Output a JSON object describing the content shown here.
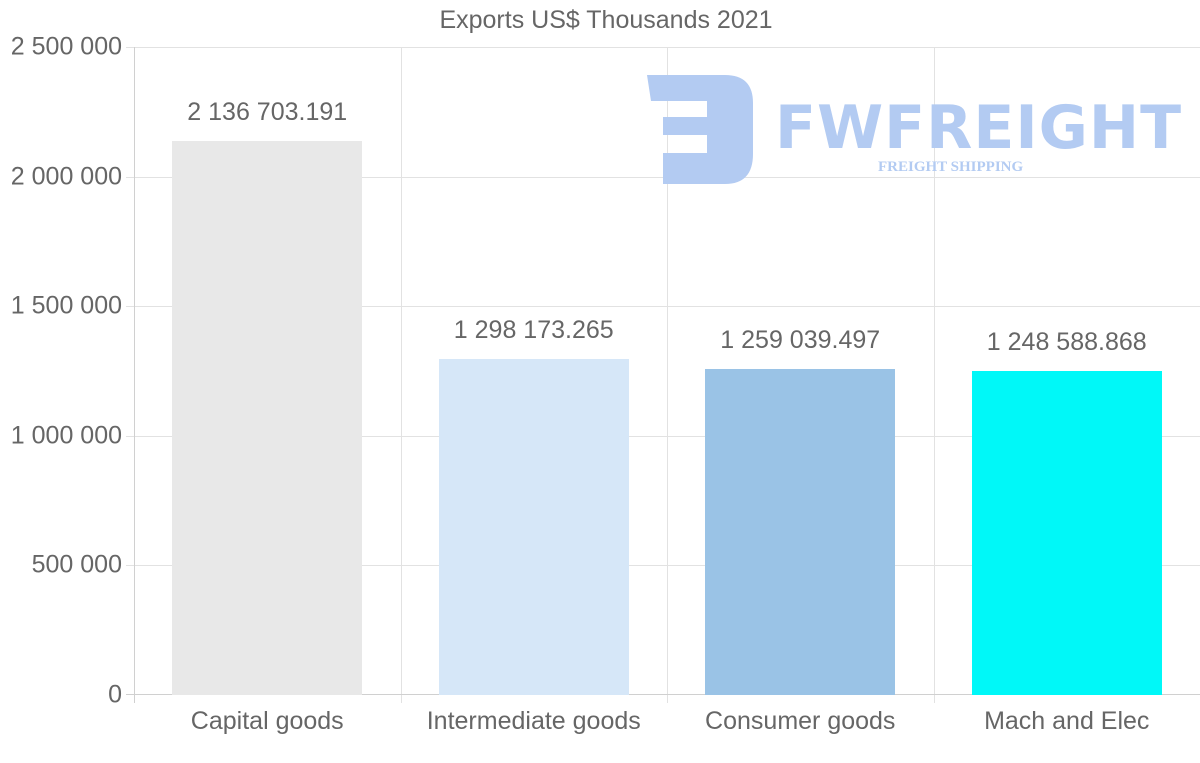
{
  "chart_data": {
    "type": "bar",
    "title": "Exports US$ Thousands 2021",
    "xlabel": "",
    "ylabel": "",
    "categories": [
      "Capital goods",
      "Intermediate goods",
      "Consumer goods",
      "Mach and Elec"
    ],
    "values": [
      2136703.191,
      1298173.265,
      1259039.497,
      1248588.868
    ],
    "value_labels": [
      "2 136 703.191",
      "1 298 173.265",
      "1 259 039.497",
      "1 248 588.868"
    ],
    "colors": [
      "#e8e8e8",
      "#d6e7f8",
      "#9ac3e6",
      "#00f8f8"
    ],
    "ylim": [
      0,
      2500000
    ],
    "yticks": [
      0,
      500000,
      1000000,
      1500000,
      2000000,
      2500000
    ],
    "ytick_labels": [
      "0",
      "500 000",
      "1 000 000",
      "1 500 000",
      "2 000 000",
      "2 500 000"
    ],
    "grid": true,
    "legend": null
  },
  "watermark": {
    "brand": "FWFREIGHT",
    "tagline": "FREIGHT SHIPPING",
    "color": "#b3cbf2"
  }
}
